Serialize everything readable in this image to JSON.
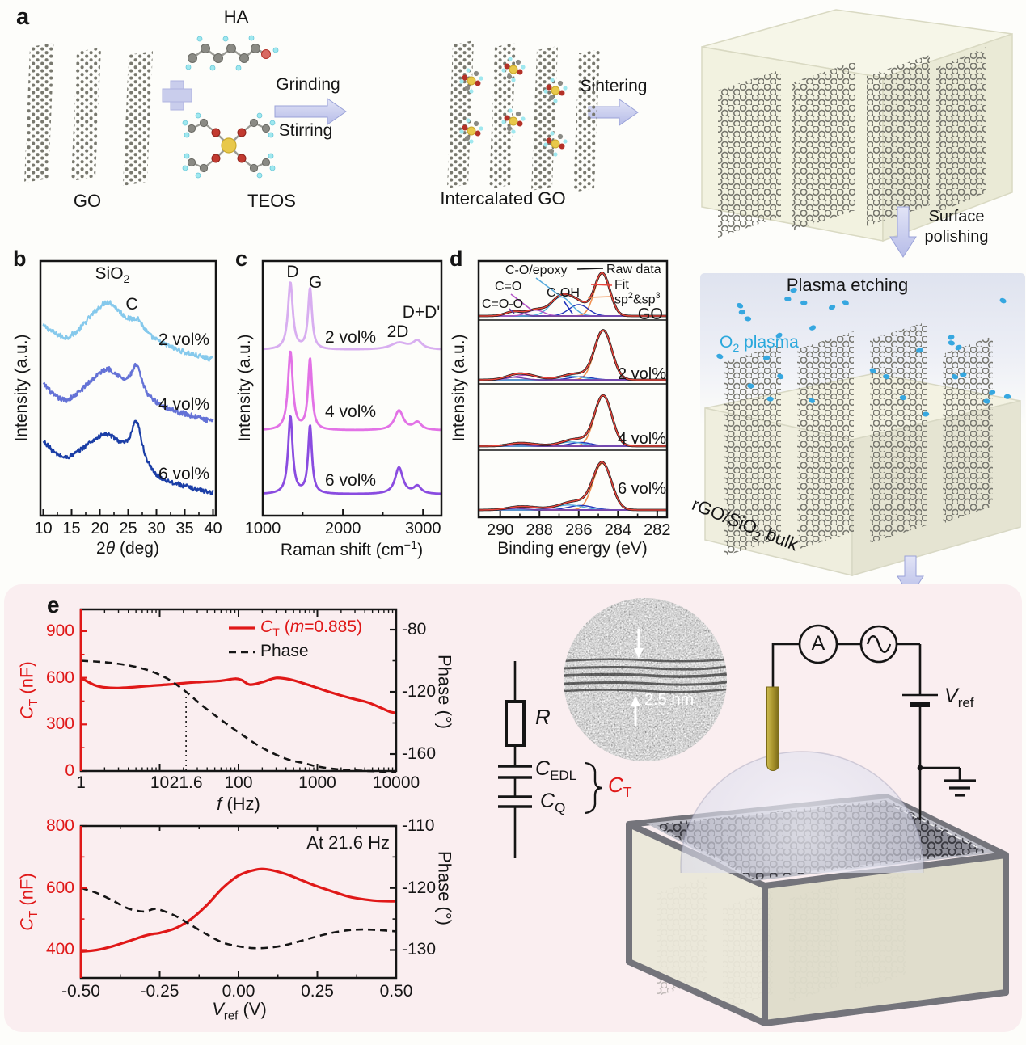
{
  "panel_tags": {
    "a": "a",
    "b": "b",
    "c": "c",
    "d": "d",
    "e": "e"
  },
  "panel_a": {
    "ha": "HA",
    "go": "GO",
    "teos": "TEOS",
    "intercalated": "Intercalated GO",
    "grinding": "Grinding",
    "stirring": "Stirring",
    "sintering": "Sintering",
    "surface_polishing_line1": "Surface",
    "surface_polishing_line2": "polishing"
  },
  "plasma": {
    "title": "Plasma etching",
    "o2_label": "O_{2} plasma",
    "bulk_label": "rGO/SiO_{2} bulk"
  },
  "circuit": {
    "resistor": "*R*",
    "c_edl": "*C*_{EDL}",
    "c_q": "*C*_{Q}",
    "c_total": "*C*_{T}"
  },
  "tem": {
    "scale_label": "2.5 nm"
  },
  "measurement": {
    "ammeter": "A",
    "v_ref": "*V*_{ref}"
  },
  "colors": {
    "accent_red": "#e01818",
    "ink": "#151515",
    "panel_bg": "#faeef0",
    "xrd_2vol": "#85c9ec",
    "xrd_4vol": "#6472d6",
    "xrd_6vol": "#1b3ea6",
    "raman_2vol": "#d8aef0",
    "raman_4vol": "#e272e6",
    "raman_6vol": "#8a4ce0",
    "xps_raw": "#151515",
    "xps_fit": "#e8453c",
    "xps_sp": "#f09050",
    "xps_coh": "#2233bb",
    "xps_epoxy": "#55aadd",
    "xps_co": "#b455c8",
    "xps_coo": "#7040a8",
    "xps_baseline": "#202090",
    "plasma_dot": "#36a7e0",
    "o2_text": "#2aa8dc"
  },
  "chart_data": [
    {
      "id": "xrd",
      "type": "line",
      "xlabel": "2*θ* (deg)",
      "ylabel": "Intensity (a.u.)",
      "xlim": [
        9.5,
        40.5
      ],
      "ylim": [
        0,
        3.1
      ],
      "xticks": [
        10,
        15,
        20,
        25,
        30,
        35,
        40
      ],
      "peak_labels": [
        "SiO_{2}",
        "C"
      ],
      "grid": false,
      "series": [
        {
          "name": "2 vol%",
          "color_key": "xrd_2vol",
          "noise": 0.03,
          "points": [
            [
              10,
              2.32
            ],
            [
              12,
              2.22
            ],
            [
              14,
              2.16
            ],
            [
              16,
              2.24
            ],
            [
              18,
              2.4
            ],
            [
              20,
              2.55
            ],
            [
              21.5,
              2.62
            ],
            [
              23,
              2.52
            ],
            [
              24.5,
              2.42
            ],
            [
              25.8,
              2.38
            ],
            [
              26.6,
              2.44
            ],
            [
              27.6,
              2.3
            ],
            [
              29,
              2.18
            ],
            [
              31,
              2.1
            ],
            [
              33,
              2.04
            ],
            [
              35,
              1.99
            ],
            [
              37,
              1.95
            ],
            [
              40,
              1.9
            ]
          ]
        },
        {
          "name": "4 vol%",
          "color_key": "xrd_4vol",
          "noise": 0.03,
          "points": [
            [
              10,
              1.62
            ],
            [
              12,
              1.45
            ],
            [
              14,
              1.4
            ],
            [
              16,
              1.48
            ],
            [
              18,
              1.62
            ],
            [
              20,
              1.74
            ],
            [
              21.5,
              1.8
            ],
            [
              23,
              1.72
            ],
            [
              24.5,
              1.64
            ],
            [
              25.8,
              1.74
            ],
            [
              26.5,
              1.92
            ],
            [
              27.3,
              1.64
            ],
            [
              28.5,
              1.47
            ],
            [
              30,
              1.38
            ],
            [
              32,
              1.31
            ],
            [
              34,
              1.26
            ],
            [
              37,
              1.2
            ],
            [
              40,
              1.14
            ]
          ]
        },
        {
          "name": "6 vol%",
          "color_key": "xrd_6vol",
          "noise": 0.027,
          "points": [
            [
              10,
              0.92
            ],
            [
              12,
              0.76
            ],
            [
              14,
              0.7
            ],
            [
              16,
              0.77
            ],
            [
              18,
              0.88
            ],
            [
              20,
              0.97
            ],
            [
              21.3,
              1.0
            ],
            [
              22.5,
              0.95
            ],
            [
              24,
              0.88
            ],
            [
              25.4,
              0.92
            ],
            [
              26.4,
              1.25
            ],
            [
              27.1,
              1.0
            ],
            [
              28,
              0.72
            ],
            [
              29.5,
              0.52
            ],
            [
              31,
              0.45
            ],
            [
              33,
              0.4
            ],
            [
              35,
              0.36
            ],
            [
              37,
              0.32
            ],
            [
              40,
              0.28
            ]
          ]
        }
      ]
    },
    {
      "id": "raman",
      "type": "line",
      "xlabel": "Raman shift (cm^{−1})",
      "ylabel": "Intensity (a.u.)",
      "xlim": [
        1000,
        3230
      ],
      "ylim": [
        0,
        3.35
      ],
      "xticks": [
        1000,
        2000,
        3000
      ],
      "peak_labels": [
        "D",
        "G",
        "2D",
        "D+D'"
      ],
      "grid": false,
      "series": [
        {
          "name": "2 vol%",
          "color_key": "raman_2vol",
          "base": 2.18,
          "peaks": [
            [
              1345,
              0.88,
              36
            ],
            [
              1590,
              0.8,
              30
            ],
            [
              2700,
              0.09,
              130
            ],
            [
              2930,
              0.11,
              70
            ]
          ]
        },
        {
          "name": "4 vol%",
          "color_key": "raman_4vol",
          "base": 1.12,
          "peaks": [
            [
              1345,
              1.03,
              36
            ],
            [
              1590,
              0.93,
              30
            ],
            [
              2700,
              0.26,
              65
            ],
            [
              2930,
              0.1,
              60
            ]
          ]
        },
        {
          "name": "6 vol%",
          "color_key": "raman_6vol",
          "base": 0.28,
          "peaks": [
            [
              1345,
              1.02,
              34
            ],
            [
              1590,
              0.89,
              29
            ],
            [
              2700,
              0.35,
              58
            ],
            [
              2930,
              0.1,
              55
            ]
          ]
        }
      ]
    },
    {
      "id": "xps",
      "type": "line",
      "xlabel": "Binding energy (eV)",
      "ylabel": "Intensity (a.u.)",
      "xlim": [
        281.5,
        291.1
      ],
      "reversed": true,
      "xticks": [
        290,
        288,
        286,
        284,
        282
      ],
      "legend": [
        "Raw data",
        "Fit",
        "sp^{2}&sp^{3}"
      ],
      "annotations": [
        "C-O/epoxy",
        "C=O",
        "C=O-O",
        "C-OH"
      ],
      "subpanels": [
        {
          "label": "GO",
          "components": [
            {
              "key": "xps_sp",
              "c": 284.8,
              "h": 0.94,
              "w": 0.55
            },
            {
              "key": "xps_coh",
              "c": 286.0,
              "h": 0.25,
              "w": 0.7
            },
            {
              "key": "xps_epoxy",
              "c": 286.9,
              "h": 0.42,
              "w": 0.75
            },
            {
              "key": "xps_co",
              "c": 288.2,
              "h": 0.13,
              "w": 0.6
            },
            {
              "key": "xps_coo",
              "c": 289.3,
              "h": 0.1,
              "w": 0.6
            }
          ]
        },
        {
          "label": "2 vol%",
          "components": [
            {
              "key": "xps_sp",
              "c": 284.75,
              "h": 0.95,
              "w": 0.62
            },
            {
              "key": "xps_coh",
              "c": 285.9,
              "h": 0.06,
              "w": 0.8
            },
            {
              "key": "xps_epoxy",
              "c": 286.4,
              "h": 0.07,
              "w": 0.9
            },
            {
              "key": "xps_co",
              "c": 288.7,
              "h": 0.09,
              "w": 0.9
            },
            {
              "key": "xps_coo",
              "c": 289.3,
              "h": 0.05,
              "w": 0.7
            }
          ]
        },
        {
          "label": "4 vol%",
          "components": [
            {
              "key": "xps_sp",
              "c": 284.75,
              "h": 0.97,
              "w": 0.62
            },
            {
              "key": "xps_coh",
              "c": 285.9,
              "h": 0.07,
              "w": 0.8
            },
            {
              "key": "xps_epoxy",
              "c": 286.4,
              "h": 0.08,
              "w": 0.9
            },
            {
              "key": "xps_co",
              "c": 288.6,
              "h": 0.04,
              "w": 0.9
            },
            {
              "key": "xps_coo",
              "c": 289.2,
              "h": 0.03,
              "w": 0.7
            }
          ]
        },
        {
          "label": "6 vol%",
          "components": [
            {
              "key": "xps_sp",
              "c": 284.8,
              "h": 0.93,
              "w": 0.66
            },
            {
              "key": "xps_coh",
              "c": 285.9,
              "h": 0.09,
              "w": 0.9
            },
            {
              "key": "xps_epoxy",
              "c": 286.5,
              "h": 0.1,
              "w": 1.0
            },
            {
              "key": "xps_co",
              "c": 288.6,
              "h": 0.05,
              "w": 1.0
            },
            {
              "key": "xps_coo",
              "c": 289.2,
              "h": 0.03,
              "w": 0.8
            }
          ]
        }
      ]
    },
    {
      "id": "cap_freq",
      "type": "line",
      "xscale": "log",
      "xlabel": "*f* (Hz)",
      "ylabel_left": "*C*_{T} (nF)",
      "ylabel_right": "Phase (°)",
      "xlim": [
        1,
        10000
      ],
      "ylim_left": [
        0,
        1040
      ],
      "ylim_right": [
        -170.9,
        -67
      ],
      "xticks": [
        {
          "v": 1,
          "t": "1"
        },
        {
          "v": 10,
          "t": "10"
        },
        {
          "v": 21.6,
          "t": "21.6"
        },
        {
          "v": 100,
          "t": "100"
        },
        {
          "v": 1000,
          "t": "1000"
        },
        {
          "v": 10000,
          "t": "10000"
        }
      ],
      "yticks_left": [
        0,
        300,
        600,
        900
      ],
      "yticks_right": [
        -80,
        -120,
        -160
      ],
      "marker_freq": 21.6,
      "legend": [
        {
          "label": "*C*_{T} (*m*=0.885)",
          "color_key": "accent_red",
          "style": "solid"
        },
        {
          "label": "Phase",
          "color_key": "ink",
          "style": "dashed"
        }
      ],
      "series": [
        {
          "name": "C_T",
          "axis": "left",
          "color_key": "accent_red",
          "points": [
            [
              1,
              600
            ],
            [
              1.5,
              552
            ],
            [
              2,
              538
            ],
            [
              3,
              534
            ],
            [
              5,
              541
            ],
            [
              8,
              549
            ],
            [
              13,
              557
            ],
            [
              21.6,
              567
            ],
            [
              35,
              574
            ],
            [
              60,
              581
            ],
            [
              90,
              594
            ],
            [
              110,
              585
            ],
            [
              140,
              556
            ],
            [
              200,
              572
            ],
            [
              300,
              599
            ],
            [
              450,
              589
            ],
            [
              700,
              561
            ],
            [
              1000,
              535
            ],
            [
              1500,
              505
            ],
            [
              2500,
              472
            ],
            [
              4000,
              447
            ],
            [
              5000,
              430
            ],
            [
              7000,
              398
            ],
            [
              8500,
              380
            ],
            [
              10000,
              374
            ]
          ]
        },
        {
          "name": "Phase",
          "axis": "right",
          "color_key": "ink",
          "dashed": true,
          "points": [
            [
              1,
              -100
            ],
            [
              1.5,
              -100.5
            ],
            [
              2,
              -101
            ],
            [
              3,
              -102
            ],
            [
              5,
              -104
            ],
            [
              8,
              -107
            ],
            [
              13,
              -112
            ],
            [
              21.6,
              -120
            ],
            [
              35,
              -129
            ],
            [
              60,
              -138
            ],
            [
              100,
              -146
            ],
            [
              200,
              -156
            ],
            [
              400,
              -163
            ],
            [
              700,
              -166
            ],
            [
              1000,
              -168
            ],
            [
              2000,
              -170
            ],
            [
              5000,
              -171
            ],
            [
              10000,
              -171.5
            ]
          ]
        }
      ]
    },
    {
      "id": "cap_vref",
      "type": "line",
      "annotation": "At 21.6 Hz",
      "xlabel": "*V*_{ref} (V)",
      "ylabel_left": "*C*_{T} (nF)",
      "ylabel_right": "Phase (°)",
      "xlim": [
        -0.5,
        0.5
      ],
      "ylim_left": [
        310,
        800
      ],
      "ylim_right": [
        -134.5,
        -110
      ],
      "xticks": [
        {
          "v": -0.5,
          "t": "-0.50"
        },
        {
          "v": -0.25,
          "t": "-0.25"
        },
        {
          "v": 0,
          "t": "0.00"
        },
        {
          "v": 0.25,
          "t": "0.25"
        },
        {
          "v": 0.5,
          "t": "0.50"
        }
      ],
      "yticks_left": [
        400,
        600,
        800
      ],
      "yticks_right": [
        -110,
        -120,
        -130
      ],
      "series": [
        {
          "name": "C_T",
          "axis": "left",
          "color_key": "accent_red",
          "points": [
            [
              -0.5,
              395
            ],
            [
              -0.45,
              400
            ],
            [
              -0.4,
              412
            ],
            [
              -0.35,
              428
            ],
            [
              -0.3,
              445
            ],
            [
              -0.27,
              452
            ],
            [
              -0.25,
              455
            ],
            [
              -0.2,
              470
            ],
            [
              -0.15,
              500
            ],
            [
              -0.1,
              545
            ],
            [
              -0.05,
              600
            ],
            [
              0,
              640
            ],
            [
              0.05,
              658
            ],
            [
              0.09,
              660
            ],
            [
              0.15,
              645
            ],
            [
              0.2,
              625
            ],
            [
              0.25,
              605
            ],
            [
              0.3,
              588
            ],
            [
              0.35,
              572
            ],
            [
              0.4,
              563
            ],
            [
              0.45,
              558
            ],
            [
              0.5,
              557
            ]
          ]
        },
        {
          "name": "Phase",
          "axis": "right",
          "color_key": "ink",
          "dashed": true,
          "points": [
            [
              -0.5,
              -120
            ],
            [
              -0.45,
              -120.8
            ],
            [
              -0.4,
              -122
            ],
            [
              -0.35,
              -123.3
            ],
            [
              -0.3,
              -123.8
            ],
            [
              -0.27,
              -123.4
            ],
            [
              -0.25,
              -123.5
            ],
            [
              -0.2,
              -124.5
            ],
            [
              -0.15,
              -126
            ],
            [
              -0.1,
              -127.5
            ],
            [
              -0.05,
              -128.8
            ],
            [
              0,
              -129.4
            ],
            [
              0.05,
              -129.7
            ],
            [
              0.1,
              -129.6
            ],
            [
              0.15,
              -129.2
            ],
            [
              0.2,
              -128.5
            ],
            [
              0.25,
              -127.8
            ],
            [
              0.3,
              -127.2
            ],
            [
              0.35,
              -126.8
            ],
            [
              0.4,
              -126.7
            ],
            [
              0.45,
              -126.8
            ],
            [
              0.5,
              -127
            ]
          ]
        }
      ]
    }
  ]
}
